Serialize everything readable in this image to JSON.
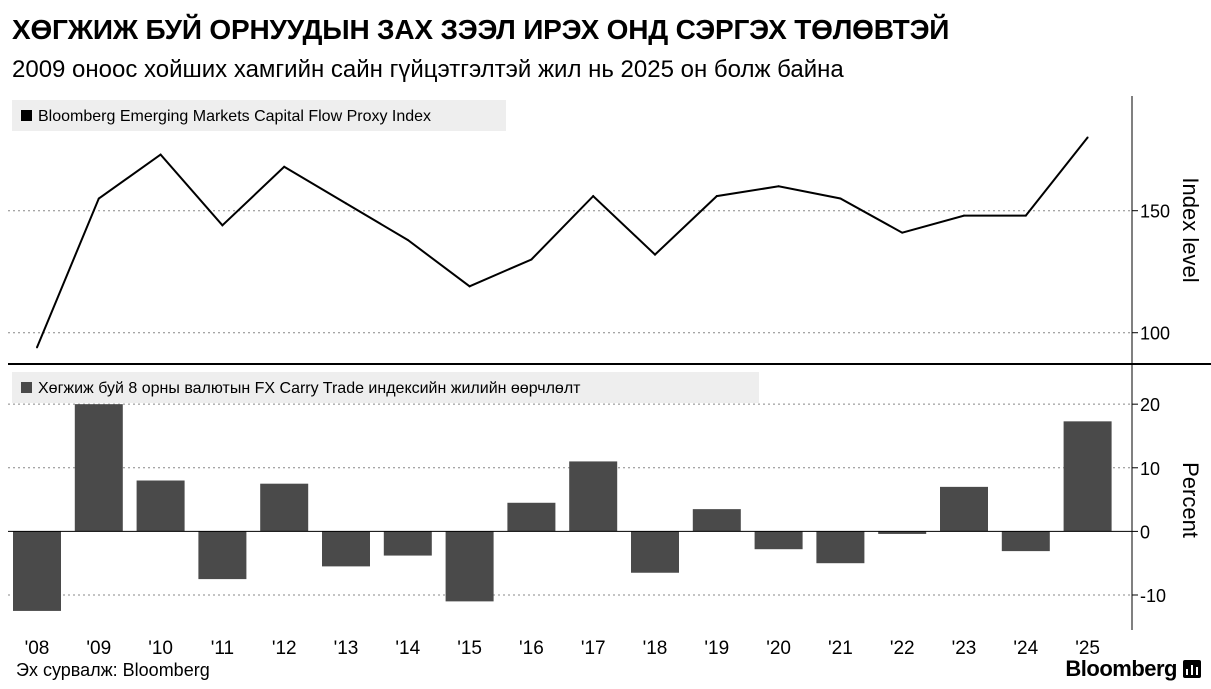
{
  "header": {
    "title": "ХӨГЖИЖ БУЙ ОРНУУДЫН ЗАХ ЗЭЭЛ ИРЭХ ОНД СЭРГЭХ ТӨЛӨВТЭЙ",
    "subtitle": "2009 оноос хойших хамгийн сайн гүйцэтгэлтэй жил нь 2025 он болж байна"
  },
  "footer": {
    "source": "Эх сурвалж: Bloomberg",
    "brand": "Bloomberg"
  },
  "colors": {
    "line": "#000000",
    "bar": "#4a4a4a",
    "legend_bg": "#eeeeee",
    "axis": "#000000",
    "grid": "#888888"
  },
  "chart_data": [
    {
      "type": "line",
      "legend": "Bloomberg Emerging Markets Capital Flow Proxy Index",
      "ylabel": "Index level",
      "x": [
        "'08",
        "'09",
        "'10",
        "'11",
        "'12",
        "'13",
        "'14",
        "'15",
        "'16",
        "'17",
        "'18",
        "'19",
        "'20",
        "'21",
        "'22",
        "'23",
        "'24",
        "'25"
      ],
      "values": [
        94,
        155,
        173,
        144,
        168,
        153,
        138,
        119,
        130,
        156,
        132,
        156,
        160,
        155,
        141,
        148,
        148,
        180
      ],
      "ylim": [
        88,
        197
      ],
      "yticks": [
        100,
        150
      ],
      "grid": true
    },
    {
      "type": "bar",
      "legend": "Хөгжиж буй 8 орны валютын FX Carry Trade индексийн жилийн өөрчлөлт",
      "ylabel": "Percent",
      "categories": [
        "'08",
        "'09",
        "'10",
        "'11",
        "'12",
        "'13",
        "'14",
        "'15",
        "'16",
        "'17",
        "'18",
        "'19",
        "'20",
        "'21",
        "'22",
        "'23",
        "'24",
        "'25"
      ],
      "values": [
        -12.5,
        20,
        8,
        -7.5,
        7.5,
        -5.5,
        -3.8,
        -11,
        4.5,
        11,
        -6.5,
        3.5,
        -2.8,
        -5,
        -0.4,
        7,
        -3.1,
        17.3
      ],
      "ylim": [
        -15.5,
        26
      ],
      "yticks": [
        -10,
        0,
        10,
        20
      ],
      "grid": true
    }
  ]
}
